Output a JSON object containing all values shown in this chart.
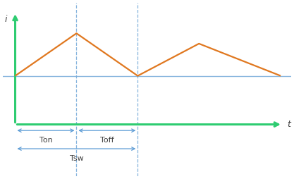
{
  "background_color": "#ffffff",
  "axis_color": "#2ecc71",
  "waveform_color": "#e07820",
  "avg_line_color": "#7aaddb",
  "vline_color": "#7aaddb",
  "annotation_color": "#5b9bd5",
  "text_color": "#404040",
  "i_label": "i",
  "t_label": "t",
  "Ton": 3.0,
  "Tsw": 6.0,
  "T_total": 13.0,
  "i_base": 0.35,
  "i_peak1": 1.05,
  "i_peak2": 0.88,
  "i_end": 0.35,
  "xlim": [
    -0.6,
    13.5
  ],
  "ylim": [
    -1.3,
    1.55
  ],
  "ann1_y": -0.55,
  "ann2_y": -0.85,
  "Ton_label": "Ton",
  "Toff_label": "Toff",
  "Tsw_label": "Tsw"
}
